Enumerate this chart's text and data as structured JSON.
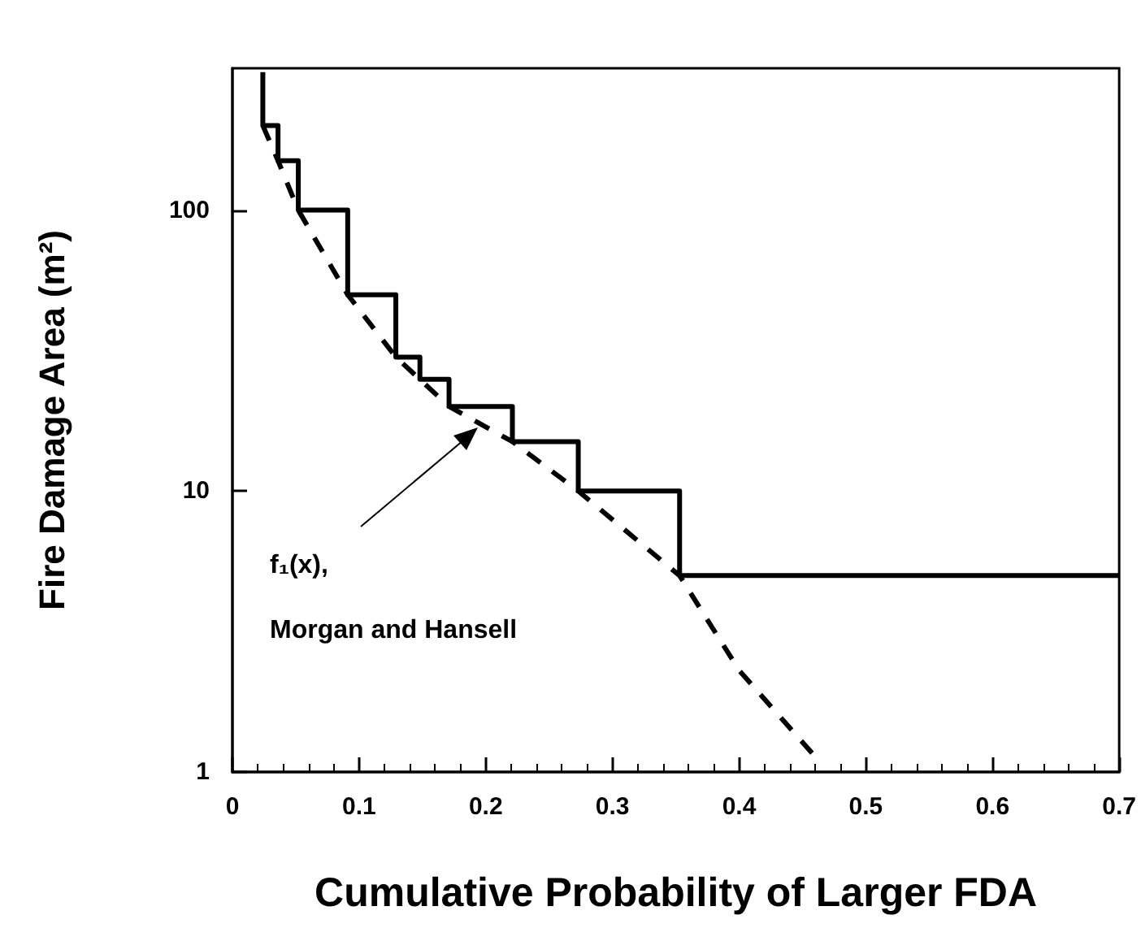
{
  "chart_data": {
    "type": "line",
    "xlabel": "Cumulative Probability of Larger FDA",
    "ylabel": "Fire Damage Area (m²)",
    "series": [
      {
        "type": "step",
        "color": "#000000",
        "line_style": "solid",
        "x": [
          0.024,
          0.024,
          0.036,
          0.052,
          0.091,
          0.129,
          0.148,
          0.171,
          0.221,
          0.273,
          0.353,
          0.7
        ],
        "values": [
          310,
          200,
          150,
          100,
          50,
          30,
          25,
          20,
          15,
          10,
          5,
          5
        ]
      },
      {
        "color": "#000000",
        "line_style": "dashed",
        "x": [
          0.024,
          0.036,
          0.052,
          0.091,
          0.129,
          0.171,
          0.221,
          0.273,
          0.353,
          0.4,
          0.461
        ],
        "values": [
          200,
          150,
          100,
          50,
          30,
          20,
          15,
          10,
          5,
          2.3,
          1.12
        ]
      }
    ],
    "annotations": [
      "f₁(x),",
      "Morgan and Hansell"
    ],
    "xlim": [
      0,
      0.7
    ],
    "xticks": [
      0,
      0.1,
      0.2,
      0.3,
      0.4,
      0.5,
      0.6,
      0.7
    ],
    "ylim": [
      1,
      320
    ],
    "yticks": [
      1,
      10,
      100
    ],
    "log": "y",
    "grid": false,
    "marker": "none"
  }
}
